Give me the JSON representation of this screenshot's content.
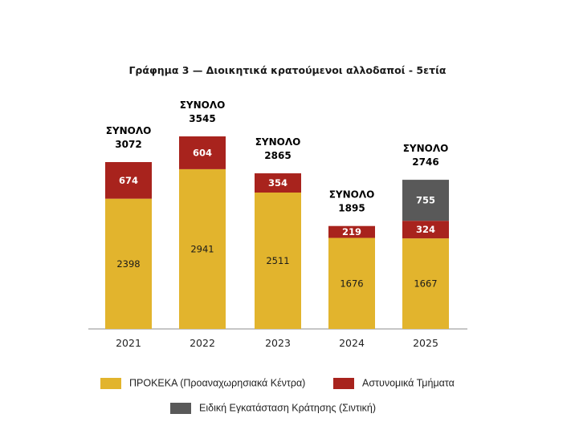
{
  "chart_data": {
    "type": "bar",
    "stacked": true,
    "title": "Γράφημα 3 — Διοικητικά κρατούμενοι αλλοδαποί - 5ετία",
    "total_label": "ΣΥΝΟΛΟ",
    "categories": [
      "2021",
      "2022",
      "2023",
      "2024",
      "2025"
    ],
    "totals": [
      3072,
      3545,
      2865,
      1895,
      2746
    ],
    "series": [
      {
        "name": "ΠΡΟΚΕΚΑ (Προαναχωρησιακά Κέντρα)",
        "color": "#E2B42D",
        "values": [
          2398,
          2941,
          2511,
          1676,
          1667
        ]
      },
      {
        "name": "Αστυνομικά Τμήματα",
        "color": "#A8231D",
        "values": [
          674,
          604,
          354,
          219,
          324
        ]
      },
      {
        "name": "Ειδική Εγκατάσταση Κράτησης (Σιντική)",
        "color": "#595959",
        "values": [
          0,
          0,
          0,
          0,
          755
        ]
      }
    ],
    "ylim": [
      0,
      4000
    ],
    "grid": false,
    "legend_position": "bottom"
  }
}
